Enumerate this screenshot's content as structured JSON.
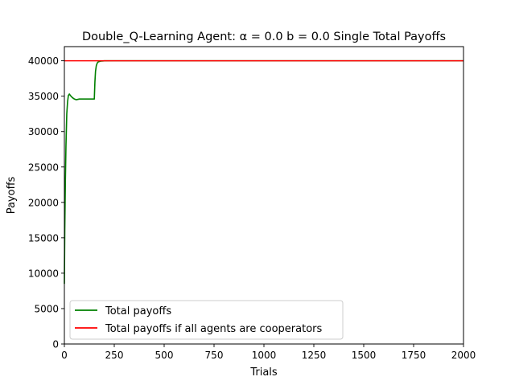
{
  "chart_data": {
    "type": "line",
    "title": "Double_Q-Learning Agent: α = 0.0 b = 0.0 Single Total Payoffs",
    "xlabel": "Trials",
    "ylabel": "Payoffs",
    "xlim": [
      0,
      2000
    ],
    "ylim": [
      0,
      42000
    ],
    "xticks": [
      0,
      250,
      500,
      750,
      1000,
      1250,
      1500,
      1750,
      2000
    ],
    "yticks": [
      0,
      5000,
      10000,
      15000,
      20000,
      25000,
      30000,
      35000,
      40000
    ],
    "grid": false,
    "legend_position": "lower-left",
    "series": [
      {
        "name": "Total payoffs",
        "color": "#008000",
        "x": [
          0,
          2,
          5,
          8,
          12,
          16,
          20,
          25,
          30,
          40,
          50,
          60,
          75,
          100,
          125,
          150,
          153,
          156,
          160,
          165,
          170,
          180,
          200,
          250,
          500,
          1000,
          1500,
          2000
        ],
        "y": [
          8500,
          16000,
          23000,
          28000,
          32500,
          34200,
          35100,
          35300,
          35100,
          34800,
          34600,
          34500,
          34600,
          34600,
          34600,
          34600,
          37000,
          38500,
          39300,
          39700,
          39850,
          39950,
          39990,
          40000,
          40000,
          40000,
          40000,
          40000
        ]
      },
      {
        "name": "Total payoffs if all agents are cooperators",
        "color": "#ff0000",
        "x": [
          0,
          2000
        ],
        "y": [
          40000,
          40000
        ]
      }
    ]
  }
}
